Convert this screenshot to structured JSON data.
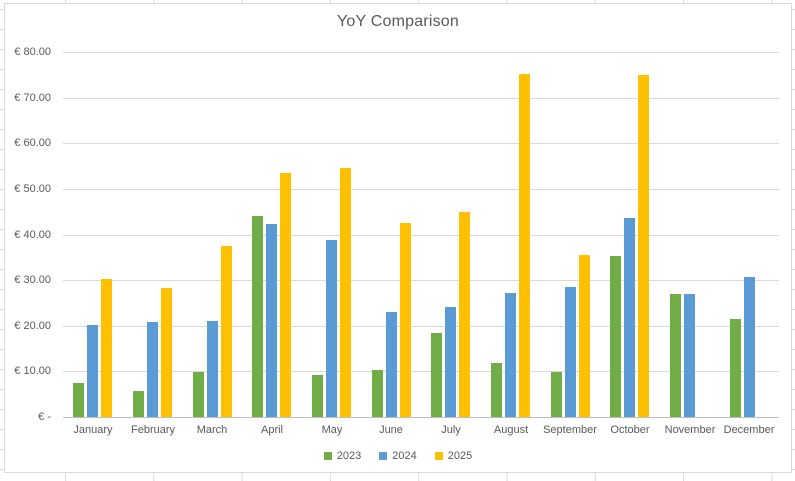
{
  "chart_data": {
    "type": "bar",
    "title": "YoY Comparison",
    "categories": [
      "January",
      "February",
      "March",
      "April",
      "May",
      "June",
      "July",
      "August",
      "September",
      "October",
      "November",
      "December"
    ],
    "series": [
      {
        "name": "2023",
        "color": "#70AD47",
        "values": [
          7.4,
          5.6,
          9.9,
          44.0,
          9.2,
          10.3,
          18.4,
          11.8,
          9.9,
          35.2,
          27.0,
          21.5
        ]
      },
      {
        "name": "2024",
        "color": "#5B9BD5",
        "values": [
          20.1,
          20.8,
          21.0,
          42.2,
          38.8,
          23.0,
          24.0,
          27.1,
          28.4,
          43.6,
          27.0,
          30.6
        ]
      },
      {
        "name": "2025",
        "color": "#FFC000",
        "values": [
          30.3,
          28.2,
          37.5,
          53.5,
          54.5,
          42.5,
          45.0,
          75.2,
          35.5,
          75.0,
          null,
          null
        ]
      }
    ],
    "xlabel": "",
    "ylabel": "",
    "ylim": [
      0,
      80
    ],
    "y_ticks": [
      "€ 80.00",
      "€ 70.00",
      "€ 60.00",
      "€ 50.00",
      "€ 40.00",
      "€ 30.00",
      "€ 20.00",
      "€ 10.00",
      "€ -"
    ],
    "grid": true,
    "legend_position": "bottom"
  },
  "colors": {
    "axis_text": "#595959",
    "title_text": "#595959",
    "gridline": "#D9D9D9",
    "axis_line": "#BFBFBF",
    "chart_border": "#D9D9D9",
    "sheet_gridline": "#D8D8D8",
    "background": "#FFFFFF"
  }
}
